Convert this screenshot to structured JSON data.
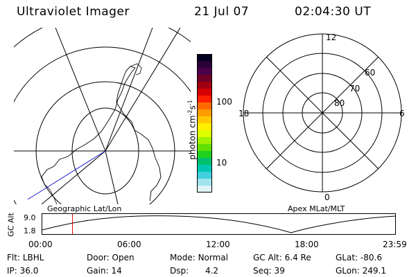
{
  "header": {
    "title": "Ultraviolet Imager",
    "date": "21 Jul 07",
    "time": "02:04:30 UT"
  },
  "colorbar": {
    "unit_label": "photon cm-2s-1",
    "unit_main": "photon cm",
    "unit_sup1": "-2",
    "unit_s": "s",
    "unit_sup2": "-1",
    "tick_labels": [
      "100",
      "10"
    ],
    "colors_top_to_bottom": [
      "#000020",
      "#2a0038",
      "#4a004a",
      "#6e0028",
      "#a00010",
      "#d40000",
      "#ff2000",
      "#ff6a00",
      "#ff9c00",
      "#ffc800",
      "#ffee00",
      "#ddff00",
      "#a0f000",
      "#60e000",
      "#20d020",
      "#00c070",
      "#00c8b0",
      "#40d0e0",
      "#a0e4ee",
      "#e0f4f8"
    ]
  },
  "panels": {
    "geo_label": "Geographic Lat/Lon",
    "apex_label": "Apex MLat/MLT"
  },
  "apex_plot": {
    "mlt_labels": [
      "12",
      "18",
      "6",
      "0"
    ],
    "lat_labels": [
      "60",
      "70",
      "80"
    ]
  },
  "altitude_plot": {
    "ylabel": "GC Alt",
    "y_ticks": [
      "9.0",
      "1.8"
    ],
    "x_ticks": [
      "00:00",
      "06:00",
      "12:00",
      "18:00",
      "23:59"
    ],
    "current_time_marker_hours": 2.075
  },
  "status": {
    "flt_label": "Flt:",
    "flt_value": "LBHL",
    "ip_label": "IP:",
    "ip_value": "36.0",
    "door_label": "Door:",
    "door_value": "Open",
    "gain_label": "Gain:",
    "gain_value": "14",
    "mode_label": "Mode:",
    "mode_value": "Normal",
    "dsp_label": "Dsp:",
    "dsp_value": "4.2",
    "gcalt_label": "GC Alt:",
    "gcalt_value": "6.4 Re",
    "seq_label": "Seq:",
    "seq_value": "39",
    "glat_label": "GLat:",
    "glat_value": "-80.6",
    "glon_label": "GLon:",
    "glon_value": "249.1"
  },
  "colors": {
    "curve": "#000000",
    "marker": "#e00000",
    "pointing_line": "#2020d0",
    "coast": "#000000"
  }
}
